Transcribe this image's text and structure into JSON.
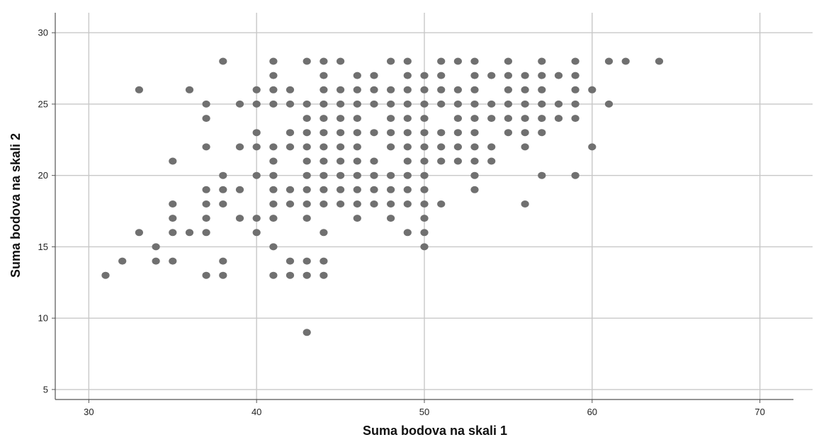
{
  "chart_data": {
    "type": "scatter",
    "title": "",
    "xlabel": "Suma bodova na skali 1",
    "ylabel": "Suma bodova na skali 2",
    "xlim": [
      28,
      72
    ],
    "ylim": [
      4.3,
      31.4
    ],
    "xticks": [
      30,
      40,
      50,
      60,
      70
    ],
    "yticks": [
      5,
      10,
      15,
      20,
      25,
      30
    ],
    "grid": true,
    "legend": "none",
    "marker_color": "#707070",
    "points": [
      [
        31,
        13
      ],
      [
        32,
        14
      ],
      [
        33,
        16
      ],
      [
        33,
        26
      ],
      [
        34,
        14
      ],
      [
        34,
        15
      ],
      [
        35,
        14
      ],
      [
        35,
        16
      ],
      [
        35,
        17
      ],
      [
        35,
        18
      ],
      [
        35,
        21
      ],
      [
        36,
        16
      ],
      [
        36,
        26
      ],
      [
        37,
        13
      ],
      [
        37,
        16
      ],
      [
        37,
        17
      ],
      [
        37,
        18
      ],
      [
        37,
        19
      ],
      [
        37,
        22
      ],
      [
        37,
        24
      ],
      [
        37,
        25
      ],
      [
        38,
        13
      ],
      [
        38,
        14
      ],
      [
        38,
        18
      ],
      [
        38,
        19
      ],
      [
        38,
        20
      ],
      [
        38,
        28
      ],
      [
        39,
        17
      ],
      [
        39,
        19
      ],
      [
        39,
        22
      ],
      [
        39,
        25
      ],
      [
        40,
        16
      ],
      [
        40,
        17
      ],
      [
        40,
        20
      ],
      [
        40,
        22
      ],
      [
        40,
        23
      ],
      [
        40,
        25
      ],
      [
        40,
        26
      ],
      [
        41,
        13
      ],
      [
        41,
        15
      ],
      [
        41,
        17
      ],
      [
        41,
        18
      ],
      [
        41,
        19
      ],
      [
        41,
        20
      ],
      [
        41,
        21
      ],
      [
        41,
        22
      ],
      [
        41,
        25
      ],
      [
        41,
        26
      ],
      [
        41,
        27
      ],
      [
        41,
        28
      ],
      [
        42,
        13
      ],
      [
        42,
        14
      ],
      [
        42,
        18
      ],
      [
        42,
        19
      ],
      [
        42,
        22
      ],
      [
        42,
        23
      ],
      [
        42,
        25
      ],
      [
        42,
        26
      ],
      [
        43,
        9
      ],
      [
        43,
        13
      ],
      [
        43,
        14
      ],
      [
        43,
        17
      ],
      [
        43,
        18
      ],
      [
        43,
        19
      ],
      [
        43,
        20
      ],
      [
        43,
        21
      ],
      [
        43,
        22
      ],
      [
        43,
        23
      ],
      [
        43,
        24
      ],
      [
        43,
        25
      ],
      [
        43,
        28
      ],
      [
        44,
        13
      ],
      [
        44,
        14
      ],
      [
        44,
        16
      ],
      [
        44,
        18
      ],
      [
        44,
        19
      ],
      [
        44,
        20
      ],
      [
        44,
        21
      ],
      [
        44,
        22
      ],
      [
        44,
        23
      ],
      [
        44,
        24
      ],
      [
        44,
        25
      ],
      [
        44,
        26
      ],
      [
        44,
        27
      ],
      [
        44,
        28
      ],
      [
        45,
        18
      ],
      [
        45,
        19
      ],
      [
        45,
        20
      ],
      [
        45,
        21
      ],
      [
        45,
        22
      ],
      [
        45,
        23
      ],
      [
        45,
        24
      ],
      [
        45,
        25
      ],
      [
        45,
        26
      ],
      [
        45,
        28
      ],
      [
        46,
        17
      ],
      [
        46,
        18
      ],
      [
        46,
        19
      ],
      [
        46,
        20
      ],
      [
        46,
        21
      ],
      [
        46,
        22
      ],
      [
        46,
        23
      ],
      [
        46,
        24
      ],
      [
        46,
        25
      ],
      [
        46,
        26
      ],
      [
        46,
        27
      ],
      [
        47,
        18
      ],
      [
        47,
        19
      ],
      [
        47,
        20
      ],
      [
        47,
        21
      ],
      [
        47,
        23
      ],
      [
        47,
        25
      ],
      [
        47,
        26
      ],
      [
        47,
        27
      ],
      [
        48,
        17
      ],
      [
        48,
        18
      ],
      [
        48,
        19
      ],
      [
        48,
        20
      ],
      [
        48,
        22
      ],
      [
        48,
        23
      ],
      [
        48,
        24
      ],
      [
        48,
        25
      ],
      [
        48,
        26
      ],
      [
        48,
        28
      ],
      [
        49,
        16
      ],
      [
        49,
        18
      ],
      [
        49,
        19
      ],
      [
        49,
        20
      ],
      [
        49,
        21
      ],
      [
        49,
        22
      ],
      [
        49,
        23
      ],
      [
        49,
        24
      ],
      [
        49,
        25
      ],
      [
        49,
        26
      ],
      [
        49,
        27
      ],
      [
        49,
        28
      ],
      [
        50,
        15
      ],
      [
        50,
        16
      ],
      [
        50,
        17
      ],
      [
        50,
        18
      ],
      [
        50,
        19
      ],
      [
        50,
        20
      ],
      [
        50,
        21
      ],
      [
        50,
        22
      ],
      [
        50,
        23
      ],
      [
        50,
        24
      ],
      [
        50,
        25
      ],
      [
        50,
        26
      ],
      [
        50,
        27
      ],
      [
        51,
        18
      ],
      [
        51,
        21
      ],
      [
        51,
        22
      ],
      [
        51,
        23
      ],
      [
        51,
        25
      ],
      [
        51,
        26
      ],
      [
        51,
        27
      ],
      [
        51,
        28
      ],
      [
        52,
        21
      ],
      [
        52,
        22
      ],
      [
        52,
        23
      ],
      [
        52,
        24
      ],
      [
        52,
        25
      ],
      [
        52,
        26
      ],
      [
        52,
        28
      ],
      [
        53,
        19
      ],
      [
        53,
        20
      ],
      [
        53,
        21
      ],
      [
        53,
        22
      ],
      [
        53,
        23
      ],
      [
        53,
        24
      ],
      [
        53,
        25
      ],
      [
        53,
        26
      ],
      [
        53,
        27
      ],
      [
        53,
        28
      ],
      [
        54,
        21
      ],
      [
        54,
        22
      ],
      [
        54,
        24
      ],
      [
        54,
        25
      ],
      [
        54,
        27
      ],
      [
        55,
        23
      ],
      [
        55,
        24
      ],
      [
        55,
        25
      ],
      [
        55,
        26
      ],
      [
        55,
        27
      ],
      [
        55,
        28
      ],
      [
        56,
        18
      ],
      [
        56,
        22
      ],
      [
        56,
        23
      ],
      [
        56,
        24
      ],
      [
        56,
        25
      ],
      [
        56,
        26
      ],
      [
        56,
        27
      ],
      [
        57,
        20
      ],
      [
        57,
        23
      ],
      [
        57,
        24
      ],
      [
        57,
        25
      ],
      [
        57,
        26
      ],
      [
        57,
        27
      ],
      [
        57,
        28
      ],
      [
        58,
        24
      ],
      [
        58,
        25
      ],
      [
        58,
        27
      ],
      [
        59,
        20
      ],
      [
        59,
        24
      ],
      [
        59,
        25
      ],
      [
        59,
        26
      ],
      [
        59,
        27
      ],
      [
        59,
        28
      ],
      [
        60,
        22
      ],
      [
        60,
        26
      ],
      [
        61,
        25
      ],
      [
        61,
        28
      ],
      [
        62,
        28
      ],
      [
        64,
        28
      ]
    ]
  }
}
